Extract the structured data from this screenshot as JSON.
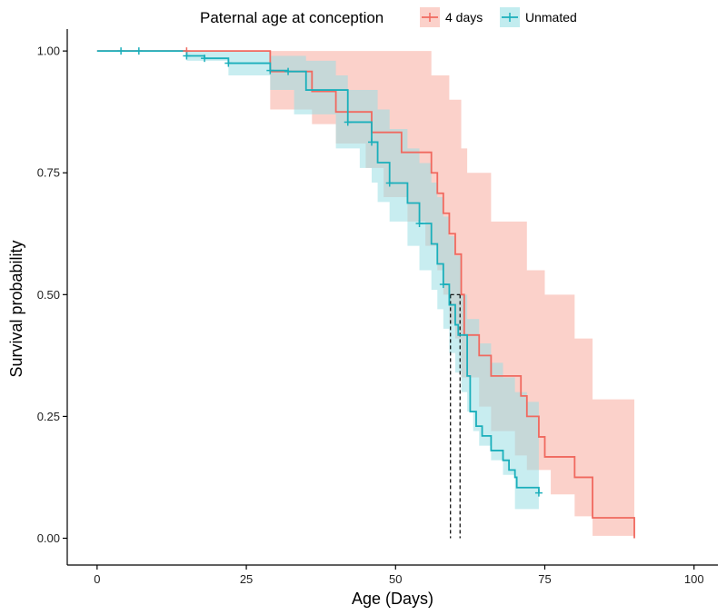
{
  "chart_data": {
    "type": "line",
    "subtype": "kaplan-meier-survival",
    "legend": {
      "title": "Paternal age at conception",
      "position": "top",
      "entries": [
        "4 days",
        "Unmated"
      ]
    },
    "xlabel": "Age (Days)",
    "ylabel": "Survival probability",
    "xlim": [
      -5,
      104
    ],
    "ylim": [
      -0.055,
      1.045
    ],
    "xticks": [
      0,
      25,
      50,
      75,
      100
    ],
    "xtick_labels": [
      "0",
      "25",
      "50",
      "75",
      "100"
    ],
    "yticks": [
      0,
      0.25,
      0.5,
      0.75,
      1.0
    ],
    "ytick_labels": [
      "0.00",
      "0.25",
      "0.50",
      "0.75",
      "1.00"
    ],
    "grid": false,
    "median_lines": [
      59.2,
      60.8
    ],
    "series": [
      {
        "name": "4 days",
        "color": "#f0695f",
        "band_color": "#f8a495",
        "steps": [
          [
            0,
            1.0
          ],
          [
            29,
            0.958
          ],
          [
            36,
            0.917
          ],
          [
            40,
            0.875
          ],
          [
            46,
            0.833
          ],
          [
            51,
            0.792
          ],
          [
            56,
            0.75
          ],
          [
            57,
            0.708
          ],
          [
            58,
            0.667
          ],
          [
            59,
            0.625
          ],
          [
            60,
            0.583
          ],
          [
            61,
            0.5
          ],
          [
            61.5,
            0.417
          ],
          [
            64,
            0.375
          ],
          [
            66,
            0.333
          ],
          [
            71,
            0.292
          ],
          [
            72,
            0.25
          ],
          [
            74,
            0.208
          ],
          [
            75,
            0.167
          ],
          [
            80,
            0.125
          ],
          [
            83,
            0.042
          ],
          [
            90,
            0.0
          ]
        ],
        "upper": [
          [
            0,
            1.0
          ],
          [
            29,
            1.0
          ],
          [
            51,
            1.0
          ],
          [
            56,
            0.95
          ],
          [
            59,
            0.9
          ],
          [
            61,
            0.8
          ],
          [
            62,
            0.75
          ],
          [
            66,
            0.65
          ],
          [
            72,
            0.55
          ],
          [
            75,
            0.5
          ],
          [
            80,
            0.41
          ],
          [
            83,
            0.285
          ],
          [
            90,
            0.285
          ]
        ],
        "lower": [
          [
            0,
            1.0
          ],
          [
            29,
            0.88
          ],
          [
            36,
            0.85
          ],
          [
            40,
            0.81
          ],
          [
            45,
            0.76
          ],
          [
            48,
            0.7
          ],
          [
            52,
            0.65
          ],
          [
            55,
            0.6
          ],
          [
            57,
            0.55
          ],
          [
            58,
            0.5
          ],
          [
            59,
            0.44
          ],
          [
            60,
            0.41
          ],
          [
            61,
            0.33
          ],
          [
            64,
            0.27
          ],
          [
            66,
            0.22
          ],
          [
            70,
            0.17
          ],
          [
            72,
            0.14
          ],
          [
            76,
            0.09
          ],
          [
            80,
            0.045
          ],
          [
            83,
            0.005
          ],
          [
            90,
            0.005
          ]
        ],
        "censored": [
          [
            15,
            1.0
          ]
        ]
      },
      {
        "name": "Unmated",
        "color": "#1aafbb",
        "band_color": "#9adfe4",
        "steps": [
          [
            0,
            1.0
          ],
          [
            15,
            0.99
          ],
          [
            18,
            0.985
          ],
          [
            22,
            0.975
          ],
          [
            29,
            0.96
          ],
          [
            32,
            0.958
          ],
          [
            35,
            0.92
          ],
          [
            42,
            0.854
          ],
          [
            46,
            0.813
          ],
          [
            47,
            0.771
          ],
          [
            49,
            0.729
          ],
          [
            52,
            0.688
          ],
          [
            54,
            0.646
          ],
          [
            56,
            0.604
          ],
          [
            57,
            0.563
          ],
          [
            58,
            0.521
          ],
          [
            59,
            0.479
          ],
          [
            60,
            0.438
          ],
          [
            60.5,
            0.417
          ],
          [
            62,
            0.333
          ],
          [
            62.5,
            0.26
          ],
          [
            63.5,
            0.23
          ],
          [
            64.5,
            0.21
          ],
          [
            66,
            0.18
          ],
          [
            68,
            0.16
          ],
          [
            69,
            0.14
          ],
          [
            70,
            0.125
          ],
          [
            70.3,
            0.104
          ],
          [
            74,
            0.093
          ]
        ],
        "upper": [
          [
            0,
            1.0
          ],
          [
            15,
            1.0
          ],
          [
            29,
            0.99
          ],
          [
            35,
            0.98
          ],
          [
            40,
            0.95
          ],
          [
            42,
            0.92
          ],
          [
            47,
            0.88
          ],
          [
            49,
            0.84
          ],
          [
            52,
            0.8
          ],
          [
            54,
            0.77
          ],
          [
            56,
            0.73
          ],
          [
            57,
            0.7
          ],
          [
            58,
            0.66
          ],
          [
            59,
            0.62
          ],
          [
            60,
            0.58
          ],
          [
            61,
            0.5
          ],
          [
            62,
            0.45
          ],
          [
            64,
            0.4
          ],
          [
            66,
            0.36
          ],
          [
            68,
            0.33
          ],
          [
            70,
            0.3
          ],
          [
            72,
            0.28
          ],
          [
            74,
            0.26
          ]
        ],
        "lower": [
          [
            0,
            1.0
          ],
          [
            15,
            0.98
          ],
          [
            22,
            0.95
          ],
          [
            29,
            0.92
          ],
          [
            33,
            0.87
          ],
          [
            40,
            0.8
          ],
          [
            44,
            0.76
          ],
          [
            46,
            0.73
          ],
          [
            47,
            0.69
          ],
          [
            49,
            0.65
          ],
          [
            52,
            0.6
          ],
          [
            54,
            0.55
          ],
          [
            56,
            0.51
          ],
          [
            57,
            0.47
          ],
          [
            58,
            0.43
          ],
          [
            59,
            0.38
          ],
          [
            60,
            0.34
          ],
          [
            61,
            0.3
          ],
          [
            62,
            0.26
          ],
          [
            63,
            0.22
          ],
          [
            64,
            0.19
          ],
          [
            66,
            0.16
          ],
          [
            68,
            0.13
          ],
          [
            70,
            0.06
          ],
          [
            74,
            0.06
          ]
        ],
        "censored": [
          [
            4,
            1.0
          ],
          [
            7,
            1.0
          ],
          [
            15,
            0.99
          ],
          [
            18,
            0.985
          ],
          [
            22,
            0.975
          ],
          [
            29,
            0.96
          ],
          [
            32,
            0.958
          ],
          [
            42,
            0.854
          ],
          [
            46,
            0.813
          ],
          [
            49,
            0.729
          ],
          [
            54,
            0.646
          ],
          [
            58,
            0.521
          ],
          [
            74,
            0.093
          ]
        ]
      }
    ]
  }
}
